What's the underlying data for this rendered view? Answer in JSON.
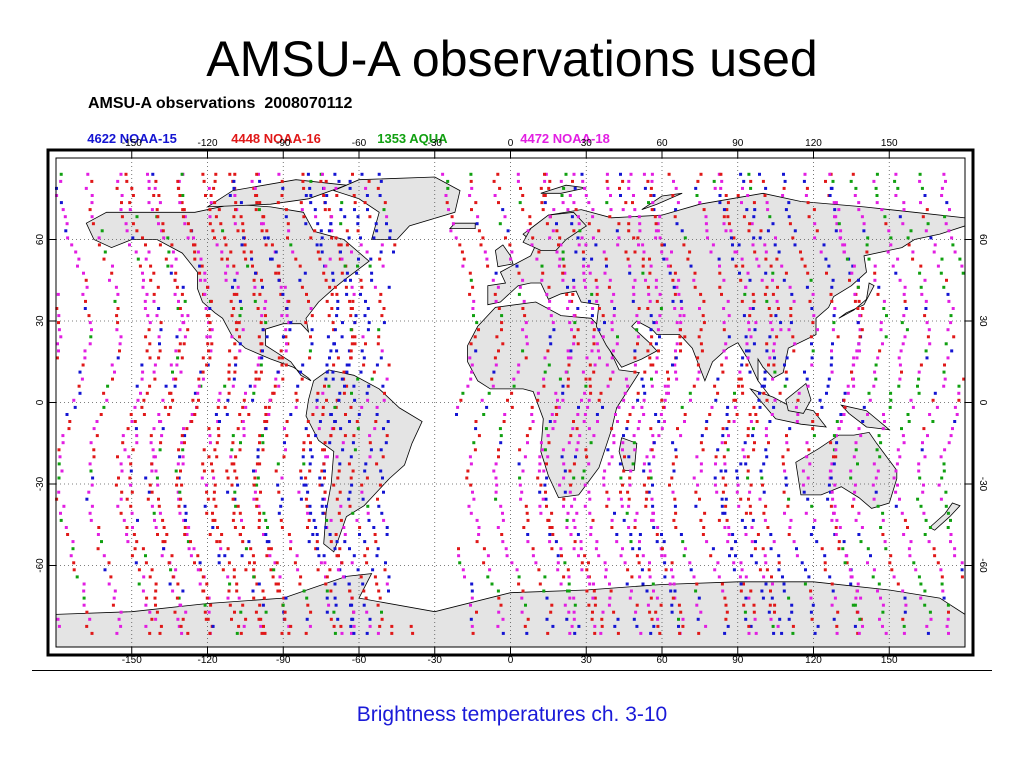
{
  "slide": {
    "title": "AMSU-A observations used",
    "caption": "Brightness temperatures ch. 3-10"
  },
  "map": {
    "title": "AMSU-A observations  2008070112",
    "legend": [
      {
        "count": "4622",
        "name": "NOAA-15",
        "color": "#1414d2"
      },
      {
        "count": "4448",
        "name": "NOAA-16",
        "color": "#e01818"
      },
      {
        "count": "1353",
        "name": "AQUA",
        "color": "#10a010"
      },
      {
        "count": "4472",
        "name": "NOAA-18",
        "color": "#e21ee2"
      }
    ],
    "lon_ticks": [
      "-150",
      "-120",
      "-90",
      "-60",
      "-30",
      "0",
      "30",
      "60",
      "90",
      "120",
      "150"
    ],
    "lat_ticks": [
      "60",
      "30",
      "0",
      "-30",
      "-60"
    ],
    "lon_range": [
      -180,
      180
    ],
    "lat_range": [
      -90,
      90
    ],
    "grid": "dotted",
    "land_color": "#e4e4e4",
    "ocean_color": "#ffffff"
  },
  "colors": {
    "caption": "#1a1ad8",
    "rule": "#000000"
  }
}
